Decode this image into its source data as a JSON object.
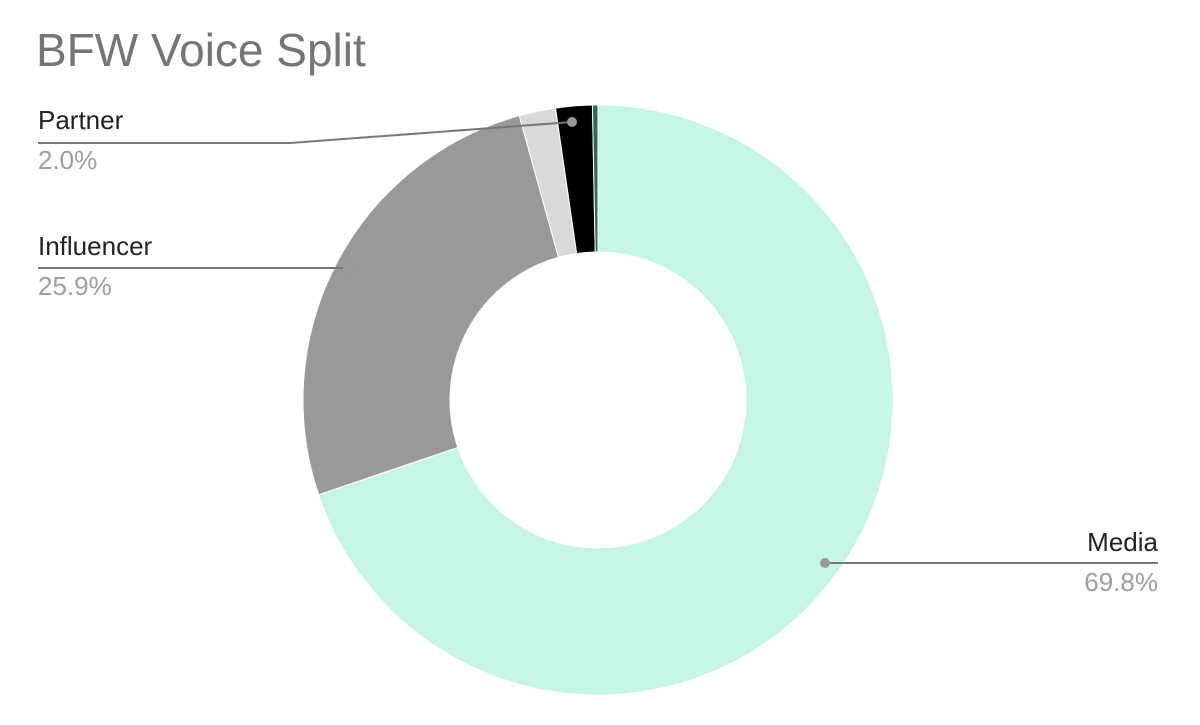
{
  "chart_data": {
    "type": "donut",
    "title": "BFW Voice Split",
    "categories": [
      "Media",
      "Influencer",
      null,
      "Partner",
      null
    ],
    "values": [
      69.8,
      25.9,
      2.0,
      2.0,
      0.3
    ],
    "value_labels": [
      "69.8%",
      "25.9%",
      null,
      "2.0%",
      null
    ],
    "colors": [
      "#c5f5e3",
      "#999999",
      "#d9d9d9",
      "#000000",
      "#2e6b4f"
    ]
  }
}
